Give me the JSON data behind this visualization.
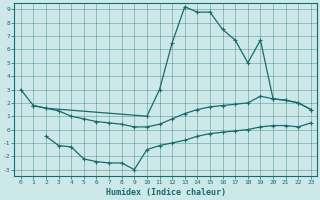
{
  "xlabel": "Humidex (Indice chaleur)",
  "bg_color": "#cce8e8",
  "line_color": "#1a6b6b",
  "xlim": [
    -0.5,
    23.5
  ],
  "ylim": [
    -3.5,
    9.5
  ],
  "xticks": [
    0,
    1,
    2,
    3,
    4,
    5,
    6,
    7,
    8,
    9,
    10,
    11,
    12,
    13,
    14,
    15,
    16,
    17,
    18,
    19,
    20,
    21,
    22,
    23
  ],
  "yticks": [
    -3,
    -2,
    -1,
    0,
    1,
    2,
    3,
    4,
    5,
    6,
    7,
    8,
    9
  ],
  "line1_x": [
    0,
    1,
    2,
    10,
    11,
    12,
    13,
    14,
    15,
    16,
    17,
    18,
    19,
    20,
    21,
    22,
    23
  ],
  "line1_y": [
    3.0,
    1.8,
    1.6,
    1.0,
    3.0,
    6.5,
    9.2,
    8.8,
    8.8,
    7.5,
    6.7,
    5.0,
    6.7,
    2.3,
    2.2,
    2.0,
    1.5
  ],
  "line2_x": [
    1,
    2,
    3,
    4,
    5,
    6,
    7,
    8,
    9,
    10,
    11,
    12,
    13,
    14,
    15,
    16,
    17,
    18,
    19,
    20,
    21,
    22,
    23
  ],
  "line2_y": [
    1.8,
    1.6,
    1.4,
    1.0,
    0.8,
    0.6,
    0.5,
    0.4,
    0.2,
    0.2,
    0.4,
    0.8,
    1.2,
    1.5,
    1.7,
    1.8,
    1.9,
    2.0,
    2.5,
    2.3,
    2.2,
    2.0,
    1.5
  ],
  "line3_x": [
    2,
    3,
    4,
    5,
    6,
    7,
    8,
    9,
    10,
    11,
    12,
    13,
    14,
    15,
    16,
    17,
    18,
    19,
    20,
    21,
    22,
    23
  ],
  "line3_y": [
    -0.5,
    -1.2,
    -1.3,
    -2.2,
    -2.4,
    -2.5,
    -2.5,
    -3.0,
    -1.5,
    -1.2,
    -1.0,
    -0.8,
    -0.5,
    -0.3,
    -0.2,
    -0.1,
    0.0,
    0.2,
    0.3,
    0.3,
    0.2,
    0.5
  ]
}
